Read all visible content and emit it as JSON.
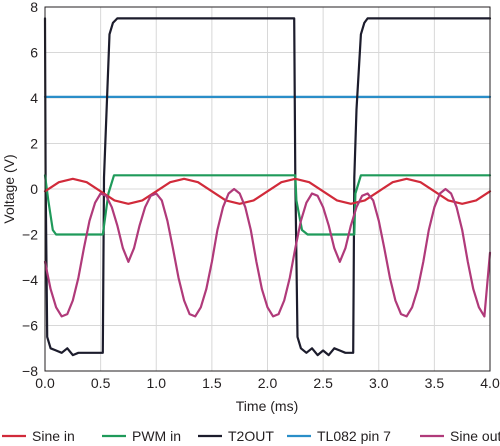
{
  "chart_data": {
    "type": "line",
    "title": "",
    "xlabel": "Time (ms)",
    "ylabel": "Voltage (V)",
    "xlim": [
      0.0,
      4.0
    ],
    "ylim": [
      -8,
      8
    ],
    "grid": true,
    "legend_position": "bottom",
    "x_ticks": [
      "0.0",
      "0.5",
      "1.0",
      "1.5",
      "2.0",
      "2.5",
      "3.0",
      "3.5",
      "4.0"
    ],
    "y_ticks": [
      "8",
      "6",
      "4",
      "2",
      "0",
      "−2",
      "−4",
      "−6",
      "−8"
    ],
    "series": [
      {
        "name": "Sine in",
        "color": "#d12a3a",
        "x": [
          0.0,
          0.125,
          0.25,
          0.375,
          0.5,
          0.625,
          0.75,
          0.875,
          1.0,
          1.125,
          1.25,
          1.375,
          1.5,
          1.625,
          1.75,
          1.875,
          2.0,
          2.125,
          2.25,
          2.375,
          2.5,
          2.625,
          2.75,
          2.875,
          3.0,
          3.125,
          3.25,
          3.375,
          3.5,
          3.625,
          3.75,
          3.875,
          4.0
        ],
        "values": [
          -0.1,
          0.3,
          0.45,
          0.3,
          -0.1,
          -0.5,
          -0.65,
          -0.5,
          -0.1,
          0.3,
          0.45,
          0.3,
          -0.1,
          -0.5,
          -0.65,
          -0.5,
          -0.1,
          0.3,
          0.45,
          0.3,
          -0.1,
          -0.5,
          -0.65,
          -0.5,
          -0.1,
          0.3,
          0.45,
          0.3,
          -0.1,
          -0.5,
          -0.65,
          -0.5,
          -0.1
        ]
      },
      {
        "name": "PWM in",
        "color": "#1f9a5a",
        "x": [
          0.0,
          0.03,
          0.07,
          0.1,
          0.52,
          0.57,
          0.62,
          2.25,
          2.26,
          2.31,
          2.36,
          2.78,
          2.79,
          2.84,
          2.89,
          4.0
        ],
        "values": [
          0.6,
          -0.5,
          -1.8,
          -2.0,
          -2.0,
          -0.2,
          0.6,
          0.6,
          -0.5,
          -1.8,
          -2.0,
          -2.0,
          -0.2,
          0.6,
          0.6,
          0.6
        ]
      },
      {
        "name": "T2OUT",
        "color": "#1c1c2c",
        "x": [
          0.0,
          0.005,
          0.02,
          0.05,
          0.1,
          0.15,
          0.2,
          0.25,
          0.3,
          0.35,
          0.4,
          0.45,
          0.5,
          0.52,
          0.53,
          0.58,
          0.61,
          0.65,
          0.7,
          2.24,
          2.25,
          2.27,
          2.3,
          2.35,
          2.4,
          2.45,
          2.5,
          2.55,
          2.6,
          2.65,
          2.7,
          2.77,
          2.78,
          2.8,
          2.84,
          2.87,
          2.9,
          2.95,
          4.0
        ],
        "values": [
          7.5,
          0.5,
          -6.5,
          -7.0,
          -7.1,
          -7.2,
          -7.0,
          -7.3,
          -7.2,
          -7.2,
          -7.2,
          -7.2,
          -7.2,
          -7.2,
          0.5,
          6.8,
          7.3,
          7.5,
          7.5,
          7.5,
          0.5,
          -6.5,
          -7.0,
          -7.2,
          -7.0,
          -7.3,
          -7.1,
          -7.3,
          -7.0,
          -7.1,
          -7.2,
          -7.2,
          0.5,
          3.5,
          6.8,
          7.3,
          7.5,
          7.5,
          7.5
        ]
      },
      {
        "name": "TL082 pin 7",
        "color": "#2a8ec8",
        "x": [
          0.0,
          4.0
        ],
        "values": [
          4.05,
          4.05
        ]
      },
      {
        "name": "Sine out",
        "color": "#b03a7a",
        "x": [
          0.0,
          0.05,
          0.1,
          0.15,
          0.2,
          0.25,
          0.3,
          0.35,
          0.4,
          0.45,
          0.5,
          0.55,
          0.6,
          0.65,
          0.7,
          0.75,
          0.8,
          0.85,
          0.9,
          0.95,
          1.0,
          1.05,
          1.1,
          1.15,
          1.2,
          1.25,
          1.3,
          1.35,
          1.4,
          1.45,
          1.5,
          1.55,
          1.6,
          1.65,
          1.7,
          1.75,
          1.8,
          1.85,
          1.9,
          1.95,
          2.0,
          2.05,
          2.1,
          2.15,
          2.2,
          2.25,
          2.3,
          2.35,
          2.4,
          2.45,
          2.5,
          2.55,
          2.6,
          2.65,
          2.7,
          2.75,
          2.8,
          2.85,
          2.9,
          2.95,
          3.0,
          3.05,
          3.1,
          3.15,
          3.2,
          3.25,
          3.3,
          3.35,
          3.4,
          3.45,
          3.5,
          3.55,
          3.6,
          3.65,
          3.7,
          3.75,
          3.8,
          3.85,
          3.9,
          3.95,
          4.0
        ],
        "values": [
          -3.2,
          -4.4,
          -5.2,
          -5.6,
          -5.5,
          -4.9,
          -3.9,
          -2.6,
          -1.4,
          -0.6,
          -0.2,
          -0.3,
          -0.8,
          -1.6,
          -2.6,
          -3.2,
          -2.6,
          -1.6,
          -0.8,
          -0.3,
          -0.2,
          -0.5,
          -1.4,
          -2.6,
          -3.9,
          -4.9,
          -5.5,
          -5.6,
          -5.2,
          -4.4,
          -3.2,
          -1.8,
          -0.8,
          -0.2,
          0.0,
          -0.2,
          -0.8,
          -1.8,
          -3.2,
          -4.4,
          -5.2,
          -5.6,
          -5.5,
          -4.9,
          -3.9,
          -2.6,
          -1.4,
          -0.6,
          -0.2,
          -0.3,
          -0.8,
          -1.6,
          -2.6,
          -3.2,
          -2.6,
          -1.6,
          -0.8,
          -0.3,
          -0.2,
          -0.5,
          -1.4,
          -2.6,
          -3.9,
          -4.9,
          -5.5,
          -5.6,
          -5.2,
          -4.4,
          -3.2,
          -1.8,
          -0.8,
          -0.2,
          0.0,
          -0.2,
          -0.8,
          -1.8,
          -3.2,
          -4.4,
          -5.2,
          -5.6,
          -2.8
        ]
      }
    ]
  }
}
